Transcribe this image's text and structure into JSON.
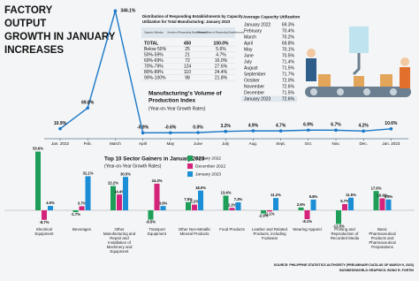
{
  "header": {
    "title": [
      "FACTORY",
      "OUTPUT",
      "GROWTH IN JANUARY",
      "INCREASES"
    ]
  },
  "chart_data": [
    {
      "type": "line",
      "title": [
        "Manufacturing's Volume of",
        "Production Index"
      ],
      "subtitle": "(Year-on-Year Growth Rates)",
      "categories": [
        "Jan. 2022",
        "Feb.",
        "March",
        "April",
        "May",
        "June",
        "July",
        "Aug.",
        "Sept.",
        "Oct.",
        "Nov.",
        "Dec.",
        "Jan. 2023"
      ],
      "values": [
        10.9,
        69.8,
        346.1,
        -0.9,
        -0.6,
        0.0,
        3.2,
        4.9,
        4.7,
        6.9,
        6.7,
        4.2,
        10.6
      ],
      "value_labels": [
        "10.9%",
        "69.8%",
        "346.1%",
        "-0.9%",
        "-0.6%",
        "0.0%",
        "3.2%",
        "4.9%",
        "4.7%",
        "6.9%",
        "6.7%",
        "4.2%",
        "10.6%"
      ],
      "color": "#1a78c8"
    },
    {
      "type": "bar",
      "title": "Top 10 Sector Gainers in January 2023",
      "subtitle": "(Year-on-Year Growth Rates)",
      "categories": [
        "Electrical Equipment",
        "Beverages",
        "Other Manufacturing and Repair and Installation of Machinery and Equipment",
        "Transport Equipment",
        "Other Non-Metallic Mineral Products",
        "Food Products",
        "Leather and Related Products, including Footwear",
        "Wearing Apparel",
        "Printing and Reproduction of Recorded Media",
        "Basic Pharmaceutical Products and Pharmaceutical Preparations"
      ],
      "series": [
        {
          "name": "January 2022",
          "color": "#1e9e58",
          "values": [
            53.6,
            -1.7,
            22.2,
            -8.5,
            7.5,
            13.4,
            -2.9,
            2.6,
            -12.5,
            17.6
          ],
          "value_labels": [
            "53.6%",
            "-1.7%",
            "22.2%",
            "-8.5%",
            "7.5%",
            "13.4%",
            "-2.9%",
            "2.6%",
            "-12.5%",
            "17.6%"
          ]
        },
        {
          "name": "December 2022",
          "color": "#d4237a",
          "values": [
            -8.7,
            3.7,
            14.4,
            24.3,
            5.2,
            2.2,
            -1.1,
            -8.1,
            5.7,
            10.9
          ],
          "value_labels": [
            "-8.7%",
            "3.7%",
            "14.4%",
            "24.3%",
            "5.2%",
            "2.2%",
            "-1.1%",
            "-8.1%",
            "5.7%",
            "10.9%"
          ]
        },
        {
          "name": "January 2023",
          "color": "#1b8ed6",
          "values": [
            4.0,
            31.1,
            30.5,
            3.9,
            18.0,
            7.3,
            11.2,
            9.8,
            11.5,
            9.9
          ],
          "value_labels": [
            "4.0%",
            "31.1%",
            "30.5%",
            "3.9%",
            "18.0%",
            "7.3%",
            "11.2%",
            "9.8%",
            "11.5%",
            "9.9%"
          ]
        }
      ]
    }
  ],
  "distribution": {
    "title": [
      "Distribution of Responding Establishments by Capacity",
      "Utilization for Total Manufacturing: January 2023"
    ],
    "columns": [
      "Capacity Utilization",
      "Number of Responding Establishments",
      "Percent Share of Responding Establishments"
    ],
    "rows": [
      [
        "TOTAL",
        450,
        "100.0%"
      ],
      [
        "Below 50%",
        25,
        "5.6%"
      ],
      [
        "50%-59%",
        21,
        "4.7%"
      ],
      [
        "60%-69%",
        72,
        "16.0%"
      ],
      [
        "70%-79%",
        124,
        "27.6%"
      ],
      [
        "80%-89%",
        110,
        "24.4%"
      ],
      [
        "90%-100%",
        98,
        "21.8%"
      ]
    ]
  },
  "capacity": {
    "title": "Average Capacity Utilization",
    "rows": [
      [
        "January 2022",
        "69.3%"
      ],
      [
        "February",
        "70.4%"
      ],
      [
        "March",
        "70.2%"
      ],
      [
        "April",
        "69.8%"
      ],
      [
        "May",
        "70.1%"
      ],
      [
        "June",
        "70.5%"
      ],
      [
        "July",
        "71.4%"
      ],
      [
        "August",
        "71.5%"
      ],
      [
        "September",
        "71.7%"
      ],
      [
        "October",
        "72.0%"
      ],
      [
        "November",
        "72.6%"
      ],
      [
        "December",
        "71.5%"
      ],
      [
        "January 2023",
        "72.6%"
      ]
    ]
  },
  "source": [
    "SOURCE: PHILIPPINE STATISTICS AUTHORITY (PRELIMINARY DATA AS OF MARCH 9, 2023)",
    "BUSINESSWORLD GRAPHICS: BONG R. FORTIN"
  ]
}
